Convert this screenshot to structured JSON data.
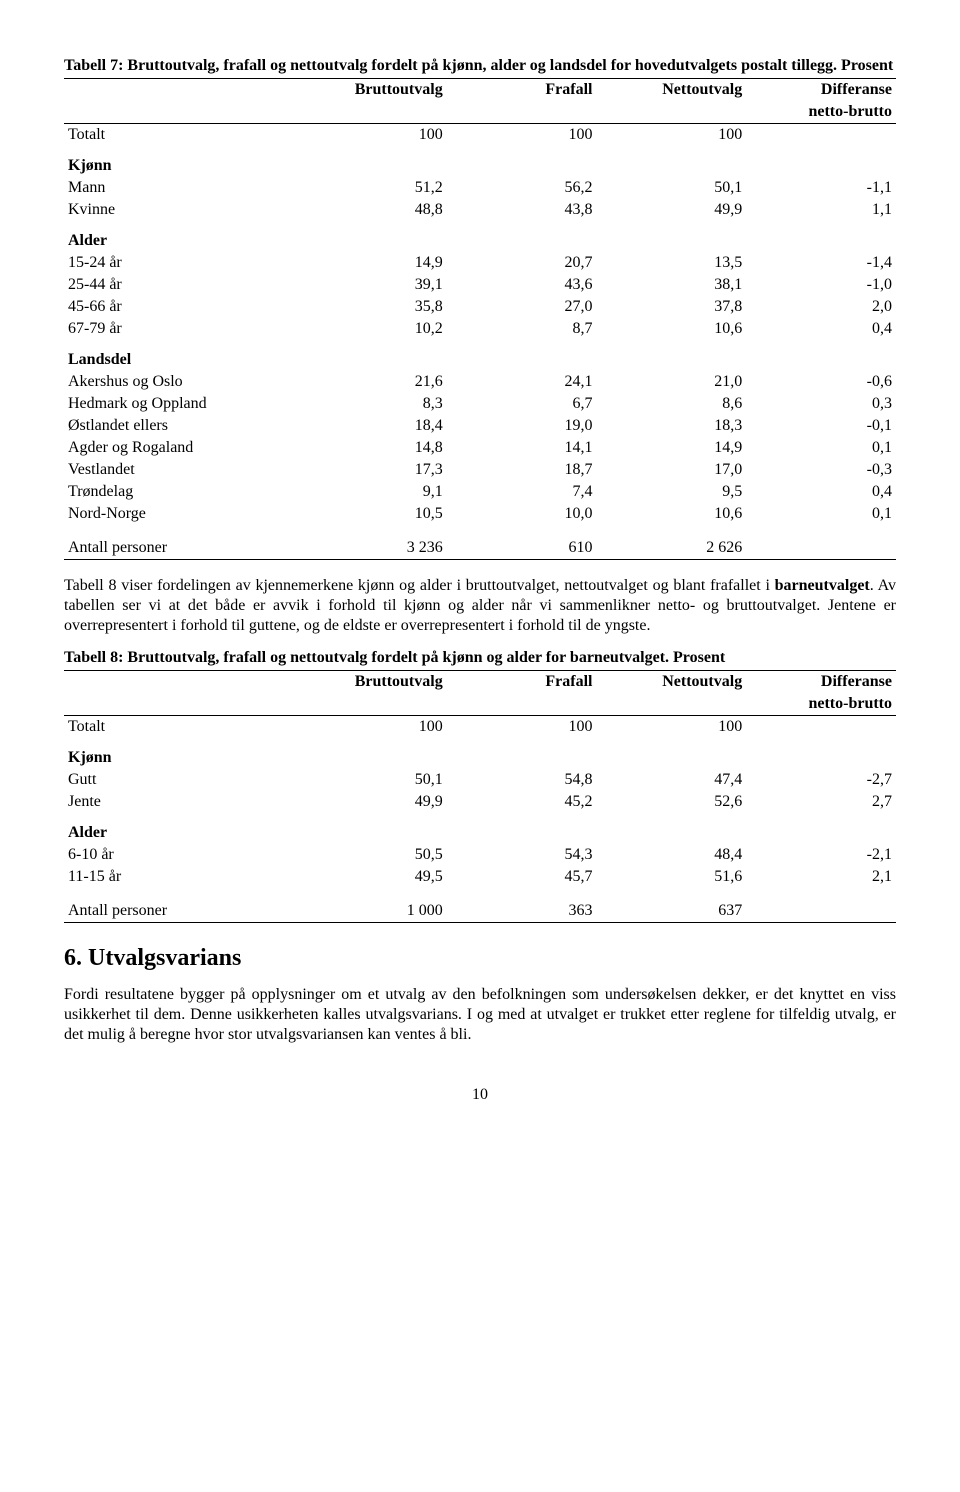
{
  "table7": {
    "title": "Tabell 7: Bruttoutvalg, frafall og nettoutvalg fordelt på kjønn, alder og landsdel for hovedutvalgets postalt tillegg. Prosent",
    "headers": {
      "c1": "",
      "c2": "Bruttoutvalg",
      "c3": "Frafall",
      "c4": "Nettoutvalg",
      "c5_top": "Differanse",
      "c5_bottom": "netto-brutto"
    },
    "totalt": {
      "label": "Totalt",
      "v": [
        "100",
        "100",
        "100",
        ""
      ]
    },
    "kjonn": {
      "title": "Kjønn",
      "rows": [
        {
          "label": "Mann",
          "v": [
            "51,2",
            "56,2",
            "50,1",
            "-1,1"
          ]
        },
        {
          "label": "Kvinne",
          "v": [
            "48,8",
            "43,8",
            "49,9",
            "1,1"
          ]
        }
      ]
    },
    "alder": {
      "title": "Alder",
      "rows": [
        {
          "label": "15-24 år",
          "v": [
            "14,9",
            "20,7",
            "13,5",
            "-1,4"
          ]
        },
        {
          "label": "25-44 år",
          "v": [
            "39,1",
            "43,6",
            "38,1",
            "-1,0"
          ]
        },
        {
          "label": "45-66 år",
          "v": [
            "35,8",
            "27,0",
            "37,8",
            "2,0"
          ]
        },
        {
          "label": "67-79 år",
          "v": [
            "10,2",
            "8,7",
            "10,6",
            "0,4"
          ]
        }
      ]
    },
    "landsdel": {
      "title": "Landsdel",
      "rows": [
        {
          "label": "Akershus og Oslo",
          "v": [
            "21,6",
            "24,1",
            "21,0",
            "-0,6"
          ]
        },
        {
          "label": "Hedmark og Oppland",
          "v": [
            "8,3",
            "6,7",
            "8,6",
            "0,3"
          ]
        },
        {
          "label": "Østlandet ellers",
          "v": [
            "18,4",
            "19,0",
            "18,3",
            "-0,1"
          ]
        },
        {
          "label": "Agder og Rogaland",
          "v": [
            "14,8",
            "14,1",
            "14,9",
            "0,1"
          ]
        },
        {
          "label": "Vestlandet",
          "v": [
            "17,3",
            "18,7",
            "17,0",
            "-0,3"
          ]
        },
        {
          "label": "Trøndelag",
          "v": [
            "9,1",
            "7,4",
            "9,5",
            "0,4"
          ]
        },
        {
          "label": "Nord-Norge",
          "v": [
            "10,5",
            "10,0",
            "10,6",
            "0,1"
          ]
        }
      ]
    },
    "antall": {
      "label": "Antall personer",
      "v": [
        "3 236",
        "610",
        "2 626",
        ""
      ]
    }
  },
  "para1": {
    "text_a": "Tabell 8 viser fordelingen av kjennemerkene kjønn og alder i bruttoutvalget, nettoutvalget og blant frafallet i ",
    "bold": "barneutvalget",
    "text_b": ". Av tabellen ser vi at det både er avvik i forhold til kjønn og alder når vi sammenlikner netto- og bruttoutvalget. Jentene er overrepresentert i forhold til guttene, og de eldste er overrepresentert i forhold til de yngste."
  },
  "table8": {
    "title": "Tabell 8: Bruttoutvalg, frafall og nettoutvalg fordelt på kjønn og alder for barneutvalget. Prosent",
    "headers": {
      "c1": "",
      "c2": "Bruttoutvalg",
      "c3": "Frafall",
      "c4": "Nettoutvalg",
      "c5_top": "Differanse",
      "c5_bottom": "netto-brutto"
    },
    "totalt": {
      "label": "Totalt",
      "v": [
        "100",
        "100",
        "100",
        ""
      ]
    },
    "kjonn": {
      "title": "Kjønn",
      "rows": [
        {
          "label": "Gutt",
          "v": [
            "50,1",
            "54,8",
            "47,4",
            "-2,7"
          ]
        },
        {
          "label": "Jente",
          "v": [
            "49,9",
            "45,2",
            "52,6",
            "2,7"
          ]
        }
      ]
    },
    "alder": {
      "title": "Alder",
      "rows": [
        {
          "label": "6-10 år",
          "v": [
            "50,5",
            "54,3",
            "48,4",
            "-2,1"
          ]
        },
        {
          "label": "11-15 år",
          "v": [
            "49,5",
            "45,7",
            "51,6",
            "2,1"
          ]
        }
      ]
    },
    "antall": {
      "label": "Antall personer",
      "v": [
        "1 000",
        "363",
        "637",
        ""
      ]
    }
  },
  "section6": {
    "title": "6. Utvalgsvarians",
    "text": "Fordi resultatene bygger på opplysninger om et utvalg av den befolkningen som undersøkelsen dekker, er det knyttet en viss usikkerhet til dem. Denne usikkerheten kalles utvalgsvarians. I og med at utvalget er trukket etter reglene for tilfeldig utvalg, er det mulig å beregne hvor stor utvalgsvariansen kan ventes å bli."
  },
  "page_number": "10"
}
